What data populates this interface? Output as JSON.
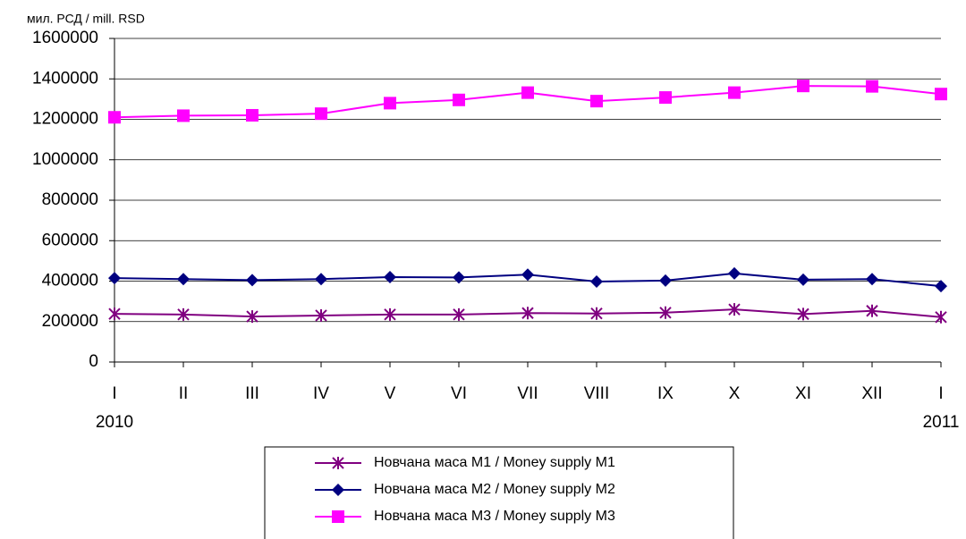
{
  "chart_data": {
    "type": "line",
    "y_label": "мил. РСД / mill. RSD",
    "categories": [
      "I",
      "II",
      "III",
      "IV",
      "V",
      "VI",
      "VII",
      "VIII",
      "IX",
      "X",
      "XI",
      "XII",
      "I"
    ],
    "annotations": [
      "2010",
      "2011"
    ],
    "series": [
      {
        "name": "Новчана маса M1 / Money supply M1",
        "color": "#800080",
        "marker": "star",
        "values": [
          238000,
          235000,
          225000,
          230000,
          235000,
          235000,
          242000,
          240000,
          244000,
          260000,
          237000,
          253000,
          222000
        ]
      },
      {
        "name": "Новчана маса M2 / Money supply M2",
        "color": "#000080",
        "marker": "diamond",
        "values": [
          415000,
          410000,
          405000,
          410000,
          420000,
          418000,
          432000,
          398000,
          403000,
          438000,
          407000,
          410000,
          375000
        ]
      },
      {
        "name": "Новчана маса M3 / Money supply M3",
        "color": "#ff00ff",
        "marker": "square",
        "values": [
          1210000,
          1218000,
          1220000,
          1228000,
          1280000,
          1296000,
          1332000,
          1290000,
          1308000,
          1332000,
          1365000,
          1363000,
          1325000
        ]
      }
    ],
    "ylim": [
      0,
      1600000
    ],
    "yticks": [
      0,
      200000,
      400000,
      600000,
      800000,
      1000000,
      1200000,
      1400000,
      1600000
    ],
    "grid": true,
    "legend": "bottom"
  }
}
